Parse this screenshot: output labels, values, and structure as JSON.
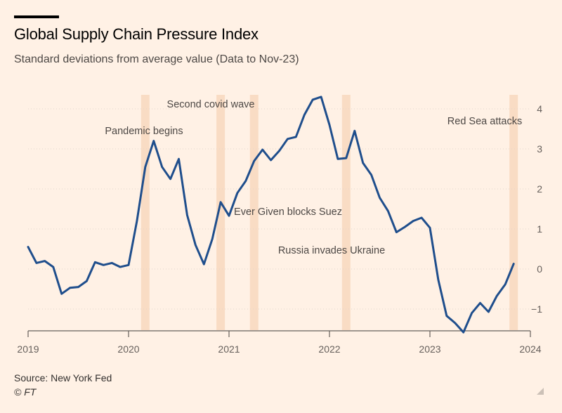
{
  "header": {
    "title": "Global Supply Chain Pressure Index",
    "subtitle": "Standard deviations from average value (Data to Nov-23)"
  },
  "footer": {
    "source": "Source: New York Fed",
    "copyright": "© FT"
  },
  "colors": {
    "background": "#fff1e5",
    "line": "#1f4e8c",
    "event_band": "#f9dcc4",
    "grid": "#e2d5ca",
    "axis_text": "#66605c"
  },
  "chart_data": {
    "type": "line",
    "title": "Global Supply Chain Pressure Index",
    "subtitle": "Standard deviations from average value (Data to Nov-23)",
    "xlabel": "",
    "ylabel": "",
    "xlim": [
      "2019-01",
      "2024-01"
    ],
    "ylim": [
      -1.6,
      4.4
    ],
    "x_ticks": [
      "2019",
      "2020",
      "2021",
      "2022",
      "2023",
      "2024"
    ],
    "y_ticks": [
      -1,
      0,
      1,
      2,
      3,
      4
    ],
    "y_tick_labels": [
      "−1",
      "0",
      "1",
      "2",
      "3",
      "4"
    ],
    "y_axis_side": "right",
    "grid": "horizontal",
    "series": [
      {
        "x": [
          "2019-01",
          "2019-02",
          "2019-03",
          "2019-04",
          "2019-05",
          "2019-06",
          "2019-07",
          "2019-08",
          "2019-09",
          "2019-10",
          "2019-11",
          "2019-12",
          "2020-01",
          "2020-02",
          "2020-03",
          "2020-04",
          "2020-05",
          "2020-06",
          "2020-07",
          "2020-08",
          "2020-09",
          "2020-10",
          "2020-11",
          "2020-12",
          "2021-01",
          "2021-02",
          "2021-03",
          "2021-04",
          "2021-05",
          "2021-06",
          "2021-07",
          "2021-08",
          "2021-09",
          "2021-10",
          "2021-11",
          "2021-12",
          "2022-01",
          "2022-02",
          "2022-03",
          "2022-04",
          "2022-05",
          "2022-06",
          "2022-07",
          "2022-08",
          "2022-09",
          "2022-10",
          "2022-11",
          "2022-12",
          "2023-01",
          "2023-02",
          "2023-03",
          "2023-04",
          "2023-05",
          "2023-06",
          "2023-07",
          "2023-08",
          "2023-09",
          "2023-10",
          "2023-11"
        ],
        "values": [
          0.55,
          0.15,
          0.2,
          0.05,
          -0.62,
          -0.47,
          -0.45,
          -0.3,
          0.17,
          0.1,
          0.15,
          0.05,
          0.1,
          1.2,
          2.55,
          3.2,
          2.55,
          2.25,
          2.75,
          1.35,
          0.6,
          0.12,
          0.75,
          1.67,
          1.33,
          1.9,
          2.2,
          2.7,
          2.98,
          2.72,
          2.95,
          3.25,
          3.3,
          3.85,
          4.23,
          4.3,
          3.6,
          2.75,
          2.77,
          3.45,
          2.65,
          2.35,
          1.78,
          1.45,
          0.92,
          1.05,
          1.2,
          1.28,
          1.03,
          -0.27,
          -1.17,
          -1.35,
          -1.58,
          -1.1,
          -0.85,
          -1.07,
          -0.67,
          -0.38,
          0.13
        ]
      }
    ],
    "events": [
      {
        "label": "Pandemic begins",
        "date": "2020-03"
      },
      {
        "label": "Second covid wave",
        "date": "2020-12"
      },
      {
        "label": "Ever Given blocks Suez",
        "date": "2021-04"
      },
      {
        "label": "Russia invades Ukraine",
        "date": "2022-03"
      },
      {
        "label": "Red Sea attacks",
        "date": "2023-11"
      }
    ]
  }
}
